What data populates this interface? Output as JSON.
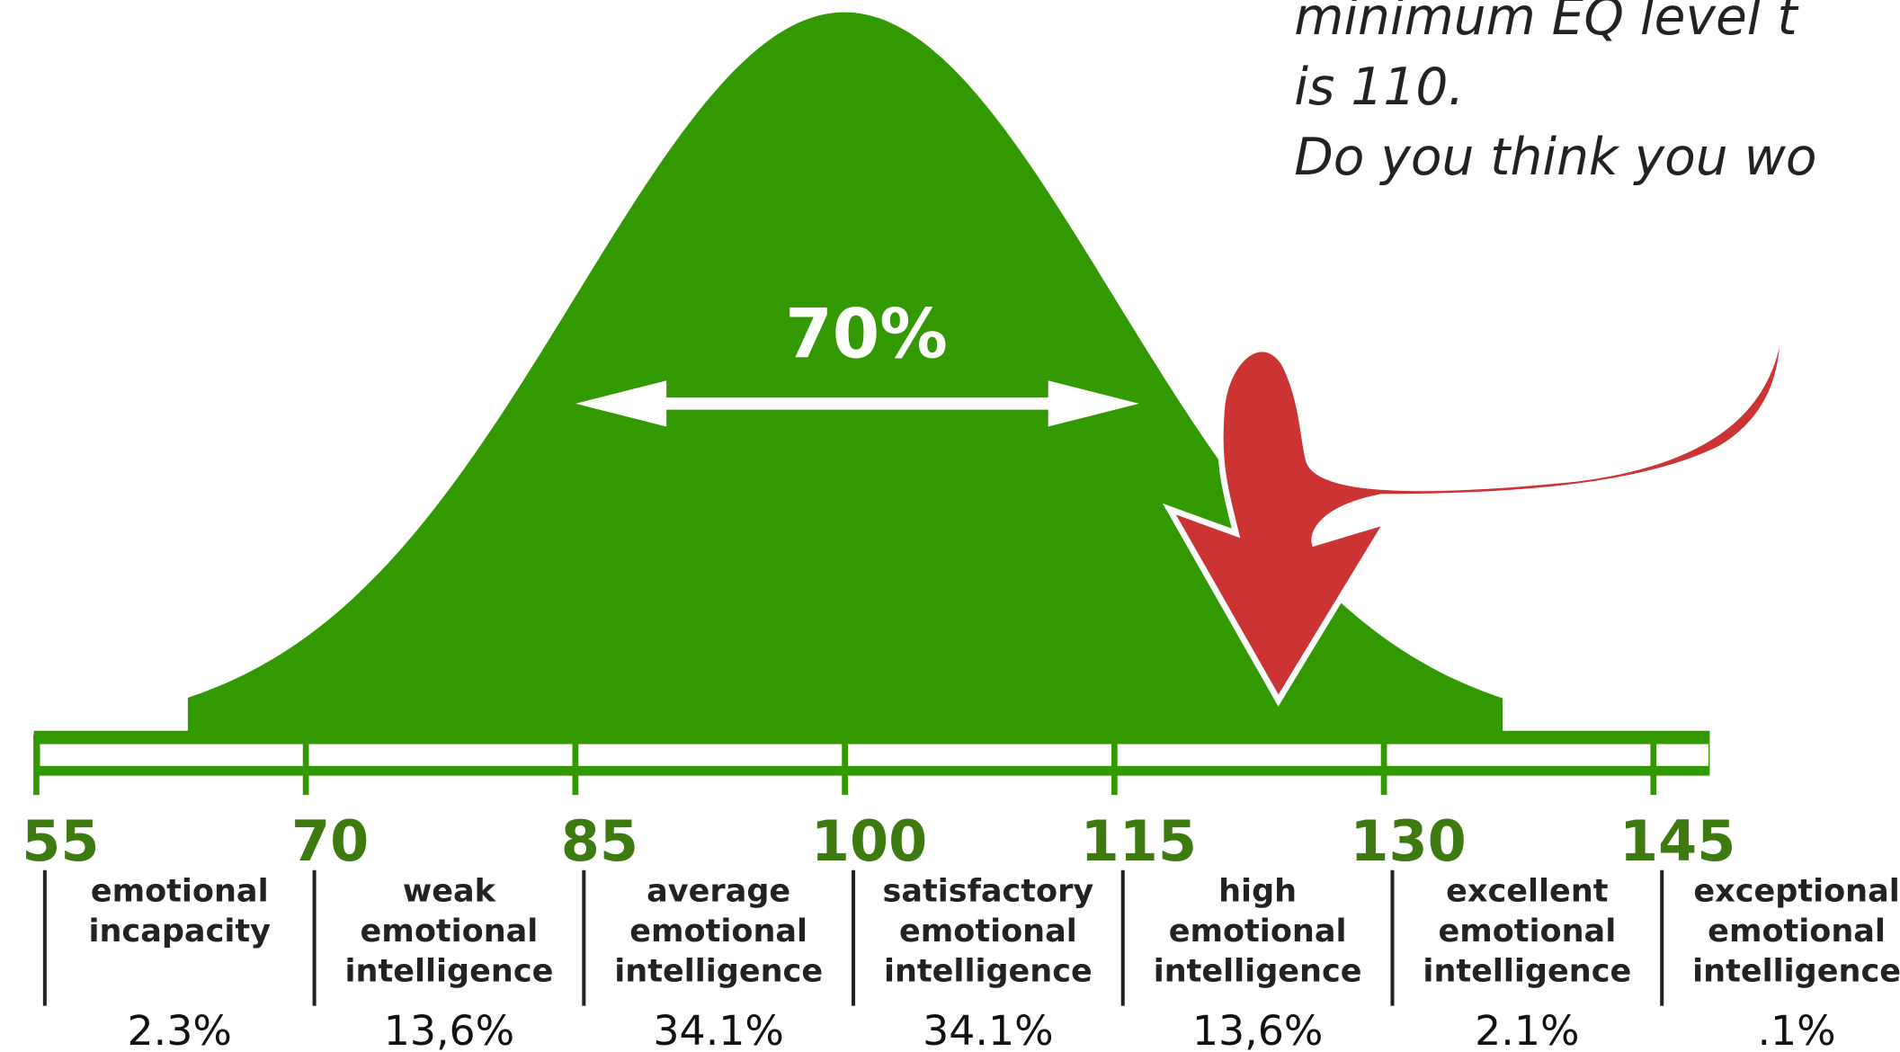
{
  "chart_data": {
    "type": "bell",
    "color": "#339900",
    "annotation": "70%",
    "note_lines": [
      "minimum EQ level t",
      "is 110.",
      "Do you think you wo"
    ],
    "xlim": [
      55,
      148
    ],
    "xticks": [
      55,
      70,
      85,
      100,
      115,
      130,
      145
    ],
    "categories": [
      "emotional incapacity",
      "weak emotional intelligence",
      "average emotional intelligence",
      "satisfactory emotional intelligence",
      "high emotional intelligence",
      "excellent emotional intelligence",
      "exceptional emotional intelligence"
    ],
    "values": [
      2.3,
      13.6,
      34.1,
      34.1,
      13.6,
      2.1,
      0.1
    ],
    "value_labels": [
      "2.3%",
      "13,6%",
      "34.1%",
      "34.1%",
      "13,6%",
      "2.1%",
      ".1%"
    ]
  }
}
